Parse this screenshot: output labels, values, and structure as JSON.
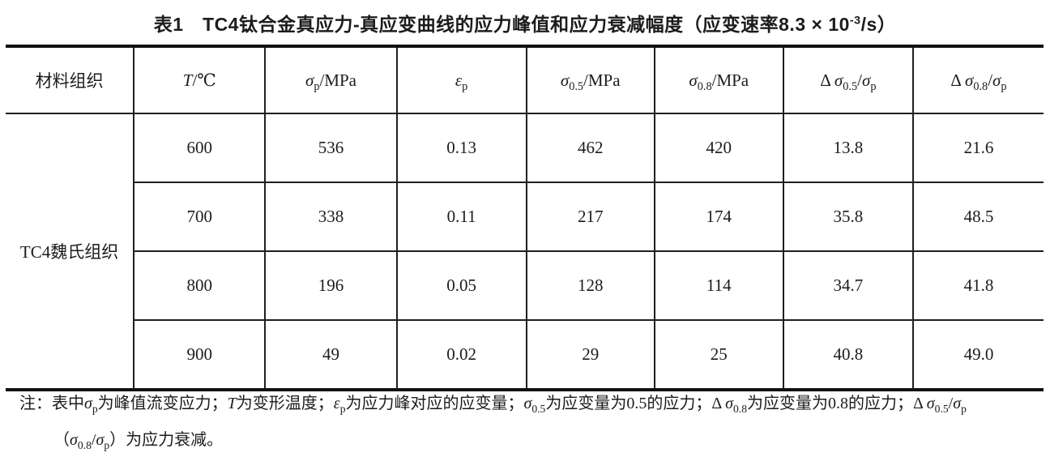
{
  "title": {
    "segments": [
      {
        "t": "表1　TC4钛合金真应力-真应变曲线的应力峰值和应力衰减幅度（应变速率8.3 × 10",
        "s": "n"
      },
      {
        "t": "-3",
        "s": "sup"
      },
      {
        "t": "/s）",
        "s": "n"
      }
    ]
  },
  "table": {
    "row_group_label": "TC4魏氏组织",
    "columns": [
      [
        {
          "t": "材料组织",
          "s": "n"
        }
      ],
      [
        {
          "t": "T",
          "s": "i"
        },
        {
          "t": "/℃",
          "s": "n"
        }
      ],
      [
        {
          "t": "σ",
          "s": "i"
        },
        {
          "t": "p",
          "s": "sub"
        },
        {
          "t": "/MPa",
          "s": "n"
        }
      ],
      [
        {
          "t": "ε",
          "s": "i"
        },
        {
          "t": "p",
          "s": "sub"
        }
      ],
      [
        {
          "t": "σ",
          "s": "i"
        },
        {
          "t": "0.5",
          "s": "sub"
        },
        {
          "t": "/MPa",
          "s": "n"
        }
      ],
      [
        {
          "t": "σ",
          "s": "i"
        },
        {
          "t": "0.8",
          "s": "sub"
        },
        {
          "t": "/MPa",
          "s": "n"
        }
      ],
      [
        {
          "t": "Δ ",
          "s": "n"
        },
        {
          "t": "σ",
          "s": "i"
        },
        {
          "t": "0.5",
          "s": "sub"
        },
        {
          "t": "/",
          "s": "n"
        },
        {
          "t": "σ",
          "s": "i"
        },
        {
          "t": "p",
          "s": "sub"
        }
      ],
      [
        {
          "t": "Δ ",
          "s": "n"
        },
        {
          "t": "σ",
          "s": "i"
        },
        {
          "t": "0.8",
          "s": "sub"
        },
        {
          "t": "/",
          "s": "n"
        },
        {
          "t": "σ",
          "s": "i"
        },
        {
          "t": "p",
          "s": "sub"
        }
      ]
    ],
    "rows": [
      {
        "values": [
          "600",
          "536",
          "0.13",
          "462",
          "420",
          "13.8",
          "21.6"
        ]
      },
      {
        "values": [
          "700",
          "338",
          "0.11",
          "217",
          "174",
          "35.8",
          "48.5"
        ]
      },
      {
        "values": [
          "800",
          "196",
          "0.05",
          "128",
          "114",
          "34.7",
          "41.8"
        ]
      },
      {
        "values": [
          "900",
          "49",
          "0.02",
          "29",
          "25",
          "40.8",
          "49.0"
        ]
      }
    ]
  },
  "note": {
    "line1": [
      {
        "t": "注：表中",
        "s": "n"
      },
      {
        "t": "σ",
        "s": "i"
      },
      {
        "t": "p",
        "s": "sub"
      },
      {
        "t": "为峰值流变应力；",
        "s": "n"
      },
      {
        "t": "T",
        "s": "i"
      },
      {
        "t": "为变形温度；",
        "s": "n"
      },
      {
        "t": "ε",
        "s": "i"
      },
      {
        "t": "p",
        "s": "sub"
      },
      {
        "t": "为应力峰对应的应变量；",
        "s": "n"
      },
      {
        "t": "σ",
        "s": "i"
      },
      {
        "t": "0.5",
        "s": "sub"
      },
      {
        "t": "为应变量为0.5的应力；",
        "s": "n"
      },
      {
        "t": "Δ ",
        "s": "n"
      },
      {
        "t": "σ",
        "s": "i"
      },
      {
        "t": "0.8",
        "s": "sub"
      },
      {
        "t": "为应变量为0.8的应力；",
        "s": "n"
      },
      {
        "t": "Δ ",
        "s": "n"
      },
      {
        "t": "σ",
        "s": "i"
      },
      {
        "t": "0.5",
        "s": "sub"
      },
      {
        "t": "/",
        "s": "n"
      },
      {
        "t": "σ",
        "s": "i"
      },
      {
        "t": "p",
        "s": "sub"
      }
    ],
    "line2": [
      {
        "t": "（",
        "s": "n"
      },
      {
        "t": "σ",
        "s": "i"
      },
      {
        "t": "0.8",
        "s": "sub"
      },
      {
        "t": "/",
        "s": "n"
      },
      {
        "t": "σ",
        "s": "i"
      },
      {
        "t": "p",
        "s": "sub"
      },
      {
        "t": "）为应力衰减。",
        "s": "n"
      }
    ]
  }
}
